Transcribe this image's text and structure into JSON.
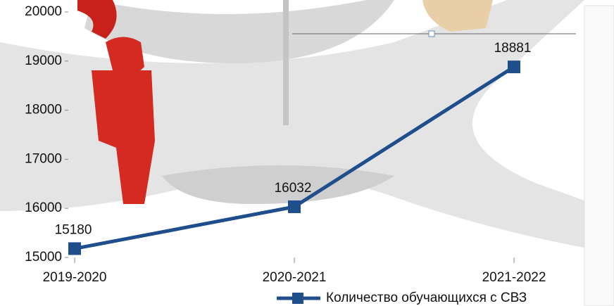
{
  "chart_data": {
    "type": "line",
    "categories": [
      "2019-2020",
      "2020-2021",
      "2021-2022"
    ],
    "series": [
      {
        "name": "Количество обучающихся с СВЗ",
        "color": "#1f4e8c",
        "values": [
          15180,
          16032,
          18881
        ]
      }
    ],
    "ylim": [
      15000,
      20000
    ],
    "yticks": [
      15000,
      16000,
      17000,
      18000,
      19000,
      20000
    ],
    "grid": false,
    "legend": "bottom-right"
  }
}
